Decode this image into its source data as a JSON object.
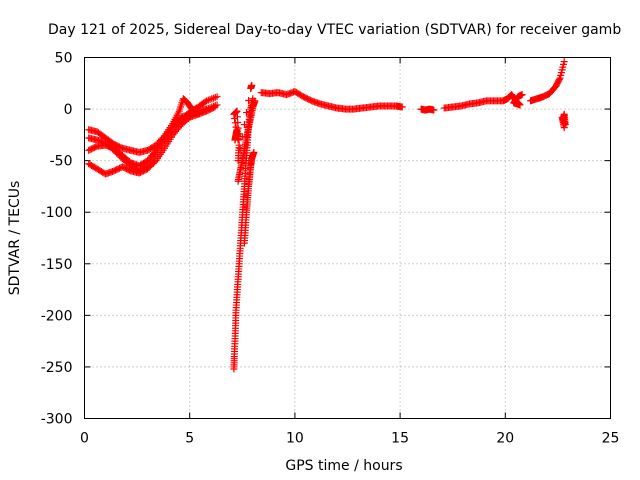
{
  "chart_data": {
    "type": "scatter",
    "title": "Day 121 of 2025, Sidereal Day-to-day VTEC variation (SDTVAR) for receiver gamb",
    "xlabel": "GPS time / hours",
    "ylabel": "SDTVAR / TECUs",
    "xlim": [
      0,
      25
    ],
    "ylim": [
      -300,
      50
    ],
    "x_ticks": [
      0,
      5,
      10,
      15,
      20,
      25
    ],
    "x_tick_labels": [
      "0",
      "5",
      "10",
      "15",
      "20",
      "25"
    ],
    "y_ticks": [
      50,
      0,
      -50,
      -100,
      -150,
      -200,
      -250,
      -300
    ],
    "y_tick_labels": [
      "50",
      "0",
      "-50",
      "-100",
      "-150",
      "-200",
      "-250",
      "-300"
    ],
    "grid": true,
    "marker": "+",
    "color": "#ff0000",
    "series": [
      {
        "name": "track-a",
        "points": [
          [
            0.2,
            -53
          ],
          [
            0.6,
            -58
          ],
          [
            1.0,
            -63
          ],
          [
            1.4,
            -60
          ],
          [
            1.8,
            -56
          ],
          [
            2.2,
            -60
          ],
          [
            2.6,
            -62
          ],
          [
            3.0,
            -58
          ],
          [
            3.4,
            -50
          ],
          [
            3.8,
            -38
          ],
          [
            4.2,
            -25
          ],
          [
            4.6,
            -15
          ],
          [
            5.0,
            -8
          ],
          [
            5.4,
            -5
          ],
          [
            5.8,
            -2
          ],
          [
            6.2,
            2
          ]
        ]
      },
      {
        "name": "track-b",
        "points": [
          [
            0.2,
            -40
          ],
          [
            0.6,
            -36
          ],
          [
            1.0,
            -35
          ],
          [
            1.4,
            -38
          ],
          [
            1.8,
            -45
          ],
          [
            2.2,
            -52
          ],
          [
            2.6,
            -55
          ],
          [
            3.0,
            -50
          ],
          [
            3.4,
            -40
          ],
          [
            3.8,
            -28
          ],
          [
            4.2,
            -16
          ],
          [
            4.6,
            -8
          ],
          [
            5.0,
            -5
          ],
          [
            5.4,
            -2
          ],
          [
            5.8,
            0
          ],
          [
            6.3,
            4
          ]
        ]
      },
      {
        "name": "track-c",
        "points": [
          [
            0.2,
            -28
          ],
          [
            0.6,
            -30
          ],
          [
            1.0,
            -33
          ],
          [
            1.4,
            -40
          ],
          [
            1.8,
            -48
          ],
          [
            2.2,
            -55
          ],
          [
            2.6,
            -60
          ],
          [
            3.0,
            -55
          ],
          [
            3.4,
            -42
          ],
          [
            3.8,
            -30
          ],
          [
            4.2,
            -18
          ],
          [
            4.6,
            -10
          ],
          [
            5.0,
            -3
          ],
          [
            5.4,
            2
          ],
          [
            5.8,
            8
          ],
          [
            6.3,
            12
          ]
        ]
      },
      {
        "name": "track-d",
        "points": [
          [
            0.2,
            -20
          ],
          [
            0.6,
            -22
          ],
          [
            1.0,
            -28
          ],
          [
            1.4,
            -34
          ],
          [
            1.8,
            -38
          ],
          [
            2.2,
            -40
          ],
          [
            2.6,
            -42
          ],
          [
            3.0,
            -40
          ],
          [
            3.4,
            -35
          ],
          [
            3.8,
            -26
          ],
          [
            4.2,
            -14
          ],
          [
            4.5,
            -2
          ],
          [
            4.7,
            10
          ],
          [
            4.9,
            6
          ],
          [
            5.1,
            0
          ],
          [
            5.4,
            -5
          ]
        ]
      },
      {
        "name": "drop-a",
        "points": [
          [
            7.1,
            -252
          ],
          [
            7.12,
            -240
          ],
          [
            7.15,
            -225
          ],
          [
            7.18,
            -210
          ],
          [
            7.2,
            -195
          ],
          [
            7.25,
            -180
          ],
          [
            7.3,
            -165
          ],
          [
            7.35,
            -150
          ],
          [
            7.4,
            -135
          ],
          [
            7.45,
            -120
          ],
          [
            7.5,
            -105
          ],
          [
            7.55,
            -90
          ],
          [
            7.6,
            -75
          ],
          [
            7.65,
            -60
          ],
          [
            7.7,
            -45
          ],
          [
            7.75,
            -30
          ],
          [
            7.8,
            -15
          ],
          [
            7.9,
            0
          ],
          [
            8.0,
            10
          ]
        ]
      },
      {
        "name": "drop-b",
        "points": [
          [
            7.3,
            -70
          ],
          [
            7.4,
            -60
          ],
          [
            7.5,
            -50
          ],
          [
            7.6,
            -40
          ],
          [
            7.7,
            -28
          ],
          [
            7.8,
            -18
          ],
          [
            7.9,
            -8
          ],
          [
            8.0,
            2
          ],
          [
            8.1,
            8
          ]
        ]
      },
      {
        "name": "drop-c",
        "points": [
          [
            7.6,
            -130
          ],
          [
            7.65,
            -115
          ],
          [
            7.7,
            -100
          ],
          [
            7.75,
            -88
          ],
          [
            7.8,
            -75
          ],
          [
            7.85,
            -65
          ],
          [
            7.9,
            -55
          ],
          [
            7.95,
            -48
          ],
          [
            8.05,
            -42
          ]
        ]
      },
      {
        "name": "drop-d",
        "points": [
          [
            7.15,
            -30
          ],
          [
            7.2,
            -25
          ],
          [
            7.25,
            -20
          ],
          [
            7.3,
            -30
          ],
          [
            7.1,
            -5
          ],
          [
            7.25,
            -2
          ],
          [
            7.35,
            -35
          ],
          [
            7.3,
            -50
          ],
          [
            7.9,
            20
          ],
          [
            7.95,
            23
          ]
        ]
      },
      {
        "name": "plateau",
        "points": [
          [
            8.4,
            16
          ],
          [
            8.8,
            15
          ],
          [
            9.2,
            16
          ],
          [
            9.6,
            14
          ],
          [
            10.0,
            17
          ],
          [
            10.4,
            12
          ],
          [
            10.8,
            8
          ],
          [
            11.2,
            5
          ],
          [
            11.6,
            3
          ],
          [
            12.0,
            1
          ],
          [
            12.4,
            0
          ],
          [
            12.8,
            0
          ],
          [
            13.2,
            1
          ],
          [
            13.6,
            2
          ],
          [
            14.0,
            3
          ],
          [
            14.4,
            3
          ],
          [
            14.8,
            3
          ],
          [
            15.1,
            2
          ]
        ]
      },
      {
        "name": "mid-a",
        "points": [
          [
            16.0,
            0
          ],
          [
            16.2,
            -1
          ],
          [
            16.4,
            0
          ],
          [
            16.6,
            -1
          ]
        ]
      },
      {
        "name": "rise-a",
        "points": [
          [
            17.1,
            1
          ],
          [
            17.5,
            2
          ],
          [
            17.9,
            3
          ],
          [
            18.3,
            5
          ],
          [
            18.7,
            6
          ],
          [
            19.1,
            8
          ],
          [
            19.5,
            8
          ],
          [
            19.9,
            8
          ],
          [
            20.1,
            10
          ],
          [
            20.3,
            14
          ],
          [
            20.5,
            8
          ],
          [
            20.7,
            4
          ],
          [
            20.4,
            6
          ],
          [
            20.6,
            12
          ],
          [
            20.8,
            14
          ]
        ]
      },
      {
        "name": "rise-b",
        "points": [
          [
            21.2,
            8
          ],
          [
            21.5,
            10
          ],
          [
            21.8,
            12
          ],
          [
            22.1,
            15
          ],
          [
            22.4,
            22
          ],
          [
            22.6,
            30
          ],
          [
            22.8,
            46
          ]
        ]
      },
      {
        "name": "tail",
        "points": [
          [
            22.75,
            -10
          ],
          [
            22.8,
            -5
          ],
          [
            22.85,
            -15
          ],
          [
            22.7,
            -8
          ],
          [
            22.8,
            -18
          ]
        ]
      }
    ]
  }
}
